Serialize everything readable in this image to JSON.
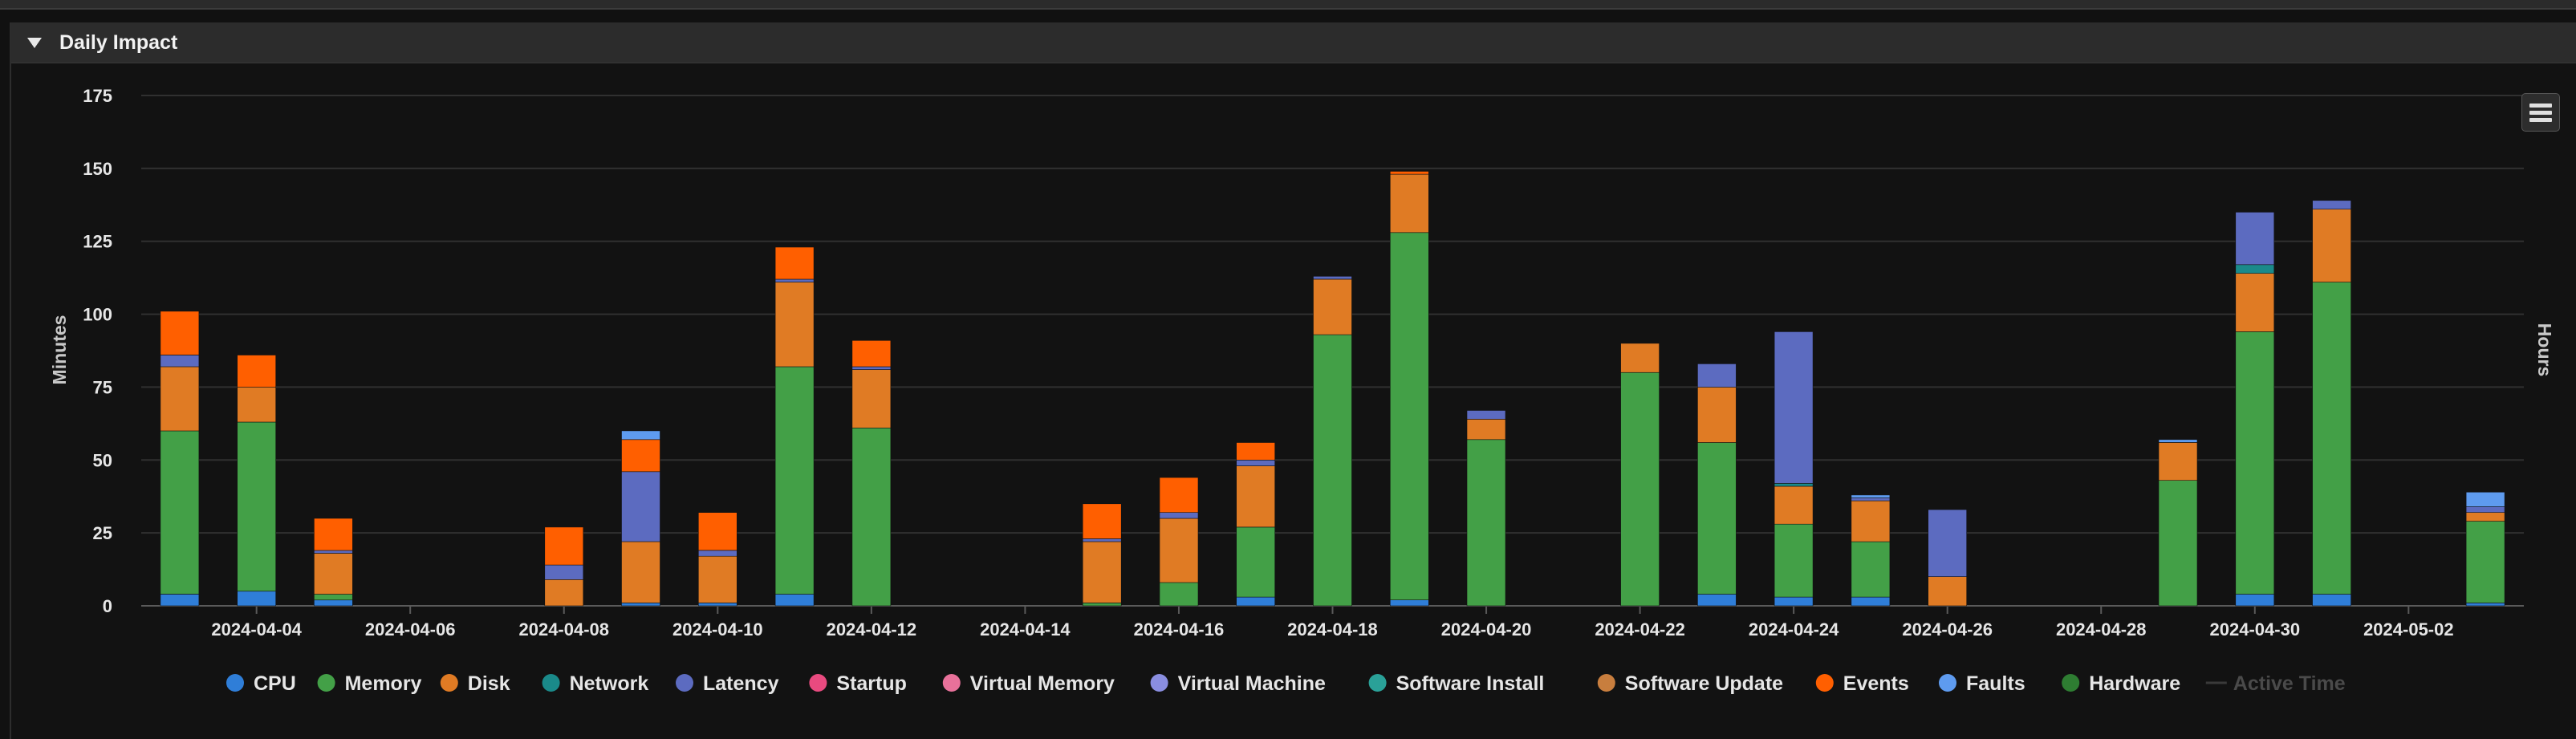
{
  "panel": {
    "title": "Daily Impact"
  },
  "chart_data": {
    "type": "bar",
    "stacked": true,
    "ylabel": "Minutes",
    "y2label": "Hours",
    "ylim": [
      0,
      175
    ],
    "yticks": [
      0,
      25,
      50,
      75,
      100,
      125,
      150,
      175
    ],
    "xlabels": [
      "2024-04-04",
      "2024-04-06",
      "2024-04-08",
      "2024-04-10",
      "2024-04-12",
      "2024-04-14",
      "2024-04-16",
      "2024-04-18",
      "2024-04-20",
      "2024-04-22",
      "2024-04-24",
      "2024-04-26",
      "2024-04-28",
      "2024-04-30",
      "2024-05-02"
    ],
    "categories": [
      "2024-04-03",
      "2024-04-04",
      "2024-04-05",
      "2024-04-06",
      "2024-04-07",
      "2024-04-08",
      "2024-04-09",
      "2024-04-10",
      "2024-04-11",
      "2024-04-12",
      "2024-04-13",
      "2024-04-14",
      "2024-04-15",
      "2024-04-16",
      "2024-04-17",
      "2024-04-18",
      "2024-04-19",
      "2024-04-20",
      "2024-04-21",
      "2024-04-22",
      "2024-04-23",
      "2024-04-24",
      "2024-04-25",
      "2024-04-26",
      "2024-04-27",
      "2024-04-28",
      "2024-04-29",
      "2024-04-30",
      "2024-05-01",
      "2024-05-02",
      "2024-05-03"
    ],
    "grid": true,
    "legend_position": "bottom",
    "series": [
      {
        "name": "CPU",
        "color": "#2f7ed8",
        "values": [
          4,
          5,
          2,
          0,
          0,
          0,
          1,
          1,
          4,
          0,
          0,
          0,
          0,
          0,
          3,
          0,
          2,
          0,
          0,
          0,
          4,
          3,
          3,
          0,
          0,
          0,
          0,
          4,
          4,
          0,
          1
        ]
      },
      {
        "name": "Memory",
        "color": "#43a047",
        "values": [
          56,
          58,
          2,
          0,
          0,
          0,
          0,
          0,
          78,
          61,
          0,
          0,
          1,
          8,
          24,
          93,
          126,
          57,
          0,
          80,
          52,
          25,
          19,
          0,
          0,
          0,
          43,
          90,
          107,
          0,
          28
        ]
      },
      {
        "name": "Disk",
        "color": "#e07b24",
        "values": [
          22,
          12,
          14,
          0,
          0,
          9,
          21,
          16,
          29,
          20,
          0,
          0,
          21,
          22,
          21,
          19,
          20,
          7,
          0,
          10,
          19,
          13,
          14,
          10,
          0,
          0,
          13,
          20,
          25,
          0,
          3
        ]
      },
      {
        "name": "Network",
        "color": "#1a8a8a",
        "values": [
          0,
          0,
          0,
          0,
          0,
          0,
          0,
          0,
          0,
          0,
          0,
          0,
          0,
          0,
          0,
          0,
          0,
          0,
          0,
          0,
          0,
          1,
          0,
          0,
          0,
          0,
          0,
          3,
          0,
          0,
          0
        ]
      },
      {
        "name": "Latency",
        "color": "#5c6bc0",
        "values": [
          4,
          0,
          1,
          0,
          0,
          5,
          24,
          2,
          1,
          1,
          0,
          0,
          1,
          2,
          2,
          1,
          0,
          3,
          0,
          0,
          8,
          52,
          1,
          23,
          0,
          0,
          0,
          18,
          3,
          0,
          2
        ]
      },
      {
        "name": "Startup",
        "color": "#e84a7f",
        "values": [
          0,
          0,
          0,
          0,
          0,
          0,
          0,
          0,
          0,
          0,
          0,
          0,
          0,
          0,
          0,
          0,
          0,
          0,
          0,
          0,
          0,
          0,
          0,
          0,
          0,
          0,
          0,
          0,
          0,
          0,
          0
        ]
      },
      {
        "name": "Virtual Memory",
        "color": "#e8719a",
        "values": [
          0,
          0,
          0,
          0,
          0,
          0,
          0,
          0,
          0,
          0,
          0,
          0,
          0,
          0,
          0,
          0,
          0,
          0,
          0,
          0,
          0,
          0,
          0,
          0,
          0,
          0,
          0,
          0,
          0,
          0,
          0
        ]
      },
      {
        "name": "Virtual Machine",
        "color": "#8a8ee0",
        "values": [
          0,
          0,
          0,
          0,
          0,
          0,
          0,
          0,
          0,
          0,
          0,
          0,
          0,
          0,
          0,
          0,
          0,
          0,
          0,
          0,
          0,
          0,
          0,
          0,
          0,
          0,
          0,
          0,
          0,
          0,
          0
        ]
      },
      {
        "name": "Software Install",
        "color": "#2aa198",
        "values": [
          0,
          0,
          0,
          0,
          0,
          0,
          0,
          0,
          0,
          0,
          0,
          0,
          0,
          0,
          0,
          0,
          0,
          0,
          0,
          0,
          0,
          0,
          0,
          0,
          0,
          0,
          0,
          0,
          0,
          0,
          0
        ]
      },
      {
        "name": "Software Update",
        "color": "#c87e3e",
        "values": [
          0,
          0,
          0,
          0,
          0,
          0,
          0,
          0,
          0,
          0,
          0,
          0,
          0,
          0,
          0,
          0,
          0,
          0,
          0,
          0,
          0,
          0,
          0,
          0,
          0,
          0,
          0,
          0,
          0,
          0,
          0
        ]
      },
      {
        "name": "Events",
        "color": "#ff5f00",
        "values": [
          15,
          11,
          11,
          0,
          0,
          13,
          11,
          13,
          11,
          9,
          0,
          0,
          12,
          12,
          6,
          0,
          1,
          0,
          0,
          0,
          0,
          0,
          0,
          0,
          0,
          0,
          0,
          0,
          0,
          0,
          0
        ]
      },
      {
        "name": "Faults",
        "color": "#5e9bef",
        "values": [
          0,
          0,
          0,
          0,
          0,
          0,
          3,
          0,
          0,
          0,
          0,
          0,
          0,
          0,
          0,
          0,
          0,
          0,
          0,
          0,
          0,
          0,
          1,
          0,
          0,
          0,
          1,
          0,
          0,
          0,
          5
        ]
      },
      {
        "name": "Hardware",
        "color": "#2e7d32",
        "values": [
          0,
          0,
          0,
          0,
          0,
          0,
          0,
          0,
          0,
          0,
          0,
          0,
          0,
          0,
          0,
          0,
          0,
          0,
          0,
          0,
          0,
          0,
          0,
          0,
          0,
          0,
          0,
          0,
          0,
          0,
          0
        ]
      }
    ],
    "active_time": {
      "name": "Active Time",
      "color": "#3a3a3a",
      "disabled": true
    }
  }
}
